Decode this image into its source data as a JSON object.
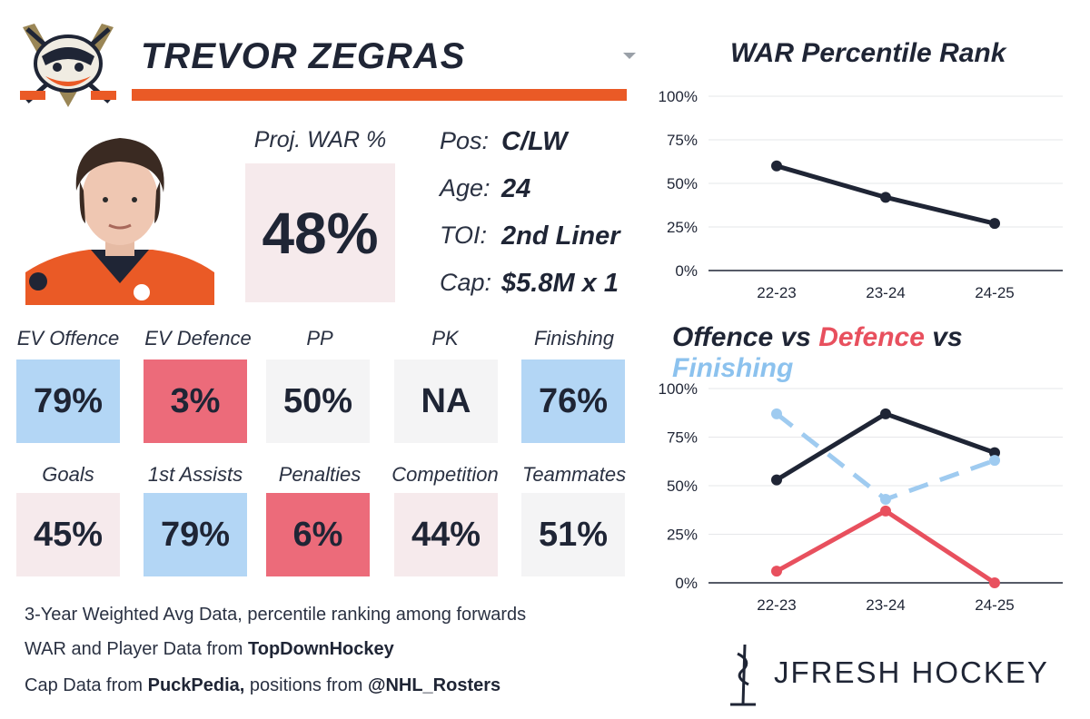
{
  "player": {
    "name": "TREVOR ZEGRAS",
    "proj_war_label": "Proj. WAR %",
    "proj_war_value": "48%",
    "info": [
      {
        "label": "Pos:",
        "value": "C/LW"
      },
      {
        "label": "Age:",
        "value": "24"
      },
      {
        "label": "TOI:",
        "value": "2nd Liner"
      },
      {
        "label": "Cap:",
        "value": "$5.8M x 1"
      }
    ]
  },
  "stats_row1": [
    {
      "label": "EV Offence",
      "value": "79%",
      "color": "#b3d6f5"
    },
    {
      "label": "EV Defence",
      "value": "3%",
      "color": "#ec6b7a"
    },
    {
      "label": "PP",
      "value": "50%",
      "color": "#f4f4f5"
    },
    {
      "label": "PK",
      "value": "NA",
      "color": "#f4f4f5"
    },
    {
      "label": "Finishing",
      "value": "76%",
      "color": "#b3d6f5"
    }
  ],
  "stats_row2": [
    {
      "label": "Goals",
      "value": "45%",
      "color": "#f6eaec"
    },
    {
      "label": "1st Assists",
      "value": "79%",
      "color": "#b3d6f5"
    },
    {
      "label": "Penalties",
      "value": "6%",
      "color": "#ec6b7a"
    },
    {
      "label": "Competition",
      "value": "44%",
      "color": "#f6eaec"
    },
    {
      "label": "Teammates",
      "value": "51%",
      "color": "#f4f4f5"
    }
  ],
  "footer": {
    "line1": "3-Year Weighted Avg Data, percentile ranking among forwards",
    "line2_prefix": "WAR and Player Data from ",
    "line2_bold": "TopDownHockey",
    "line3_prefix": "Cap Data from ",
    "line3_bold": "PuckPedia,",
    "line3_mid": " positions from ",
    "line3_bold2": "@NHL_Rosters"
  },
  "brand": "JFRESH HOCKEY",
  "chart_data": [
    {
      "type": "line",
      "title": "WAR Percentile Rank",
      "categories": [
        "22-23",
        "23-24",
        "24-25"
      ],
      "ylim": [
        0,
        100
      ],
      "yticks": [
        "0%",
        "25%",
        "50%",
        "75%",
        "100%"
      ],
      "series": [
        {
          "values": [
            60,
            42,
            27
          ],
          "color": "#1f2535",
          "dashed": false
        }
      ]
    },
    {
      "type": "line",
      "title_parts": [
        {
          "text": "Offence",
          "color": "#1f2535"
        },
        {
          "text": " vs ",
          "color": "#1f2535"
        },
        {
          "text": "Defence",
          "color": "#e8505e"
        },
        {
          "text": " vs ",
          "color": "#1f2535"
        },
        {
          "text": "Finishing",
          "color": "#8cc2ee"
        }
      ],
      "categories": [
        "22-23",
        "23-24",
        "24-25"
      ],
      "ylim": [
        0,
        100
      ],
      "yticks": [
        "0%",
        "25%",
        "50%",
        "75%",
        "100%"
      ],
      "series": [
        {
          "name": "Offence",
          "values": [
            53,
            87,
            67
          ],
          "color": "#1f2535",
          "dashed": false
        },
        {
          "name": "Defence",
          "values": [
            6,
            37,
            0
          ],
          "color": "#e8505e",
          "dashed": false
        },
        {
          "name": "Finishing",
          "values": [
            87,
            43,
            63
          ],
          "color": "#9fcbf0",
          "dashed": true
        }
      ]
    }
  ]
}
